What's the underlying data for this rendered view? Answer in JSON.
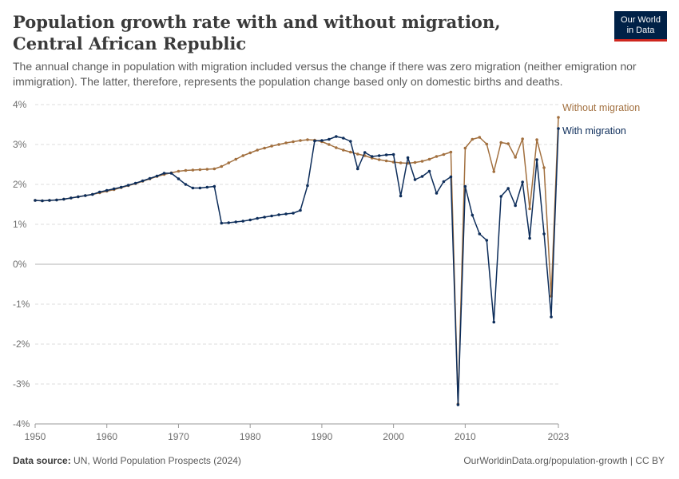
{
  "header": {
    "title": "Population growth rate with and without migration, Central African Republic",
    "subtitle": "The annual change in population with migration included versus the change if there was zero migration (neither emigration nor immigration). The latter, therefore, represents the population change based only on domestic births and deaths."
  },
  "logo": {
    "line1": "Our World",
    "line2": "in Data"
  },
  "footer": {
    "source_label": "Data source:",
    "source_text": "UN, World Population Prospects (2024)",
    "url": "OurWorldinData.org/population-growth | CC BY"
  },
  "colors": {
    "with_migration": "#0d2d5a",
    "without_migration": "#a2703f",
    "zero_line": "#b3b3b3",
    "grid": "#dddddd"
  },
  "chart_data": {
    "type": "line",
    "title": "Population growth rate with and without migration, Central African Republic",
    "xlim": [
      1950,
      2023
    ],
    "ylim": [
      -4,
      4
    ],
    "x_ticks": [
      "1950",
      "1960",
      "1970",
      "1980",
      "1990",
      "2000",
      "2010",
      "2023"
    ],
    "y_ticks": [
      "4%",
      "3%",
      "2%",
      "1%",
      "0%",
      "-1%",
      "-2%",
      "-3%",
      "-4%"
    ],
    "y_tick_values": [
      4,
      3,
      2,
      1,
      0,
      -1,
      -2,
      -3,
      -4
    ],
    "x_tick_values": [
      1950,
      1960,
      1970,
      1980,
      1990,
      2000,
      2010,
      2023
    ],
    "grid": "horizontal dashed",
    "legend": "right end labels",
    "years": [
      1950,
      1951,
      1952,
      1953,
      1954,
      1955,
      1956,
      1957,
      1958,
      1959,
      1960,
      1961,
      1962,
      1963,
      1964,
      1965,
      1966,
      1967,
      1968,
      1969,
      1970,
      1971,
      1972,
      1973,
      1974,
      1975,
      1976,
      1977,
      1978,
      1979,
      1980,
      1981,
      1982,
      1983,
      1984,
      1985,
      1986,
      1987,
      1988,
      1989,
      1990,
      1991,
      1992,
      1993,
      1994,
      1995,
      1996,
      1997,
      1998,
      1999,
      2000,
      2001,
      2002,
      2003,
      2004,
      2005,
      2006,
      2007,
      2008,
      2009,
      2010,
      2011,
      2012,
      2013,
      2014,
      2015,
      2016,
      2017,
      2018,
      2019,
      2020,
      2021,
      2022,
      2023
    ],
    "series": [
      {
        "name": "Without migration",
        "color": "#a2703f",
        "values": [
          1.6,
          1.59,
          1.6,
          1.61,
          1.63,
          1.66,
          1.69,
          1.72,
          1.75,
          1.79,
          1.83,
          1.87,
          1.92,
          1.97,
          2.02,
          2.08,
          2.14,
          2.2,
          2.25,
          2.29,
          2.33,
          2.35,
          2.36,
          2.37,
          2.38,
          2.39,
          2.45,
          2.54,
          2.63,
          2.72,
          2.79,
          2.86,
          2.91,
          2.96,
          3.0,
          3.04,
          3.07,
          3.1,
          3.12,
          3.11,
          3.07,
          3.0,
          2.92,
          2.86,
          2.81,
          2.76,
          2.72,
          2.66,
          2.62,
          2.59,
          2.56,
          2.54,
          2.53,
          2.55,
          2.58,
          2.63,
          2.7,
          2.75,
          2.81,
          -3.5,
          2.91,
          3.13,
          3.18,
          3.01,
          2.32,
          3.05,
          3.02,
          2.68,
          3.14,
          1.39,
          3.12,
          2.42,
          -0.8,
          3.68
        ]
      },
      {
        "name": "With migration",
        "color": "#0d2d5a",
        "values": [
          1.6,
          1.59,
          1.6,
          1.61,
          1.63,
          1.66,
          1.69,
          1.72,
          1.75,
          1.81,
          1.85,
          1.89,
          1.93,
          1.98,
          2.03,
          2.09,
          2.15,
          2.21,
          2.28,
          2.28,
          2.14,
          2.0,
          1.91,
          1.91,
          1.93,
          1.95,
          1.03,
          1.04,
          1.06,
          1.08,
          1.11,
          1.15,
          1.18,
          1.21,
          1.24,
          1.26,
          1.28,
          1.35,
          1.97,
          3.09,
          3.1,
          3.13,
          3.2,
          3.16,
          3.08,
          2.39,
          2.8,
          2.7,
          2.72,
          2.74,
          2.75,
          1.71,
          2.67,
          2.12,
          2.2,
          2.33,
          1.78,
          2.07,
          2.19,
          -3.52,
          1.95,
          1.23,
          0.76,
          0.6,
          -1.45,
          1.7,
          1.9,
          1.47,
          2.06,
          0.65,
          2.62,
          0.76,
          -1.32,
          3.4
        ]
      }
    ]
  }
}
